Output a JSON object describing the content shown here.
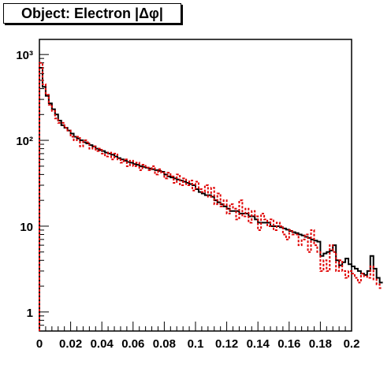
{
  "title": "Object: Electron |Δφ|",
  "chart_data": {
    "type": "line",
    "title": "Object: Electron |Δφ|",
    "xlabel": "",
    "ylabel": "",
    "xlim": [
      0,
      0.2
    ],
    "ylim": [
      0.6,
      1500
    ],
    "yscale": "log",
    "grid": false,
    "x_ticks": [
      "0",
      "0.02",
      "0.04",
      "0.06",
      "0.08",
      "0.1",
      "0.12",
      "0.14",
      "0.16",
      "0.18",
      "0.2"
    ],
    "y_ticks": [
      "1",
      "10",
      "10²",
      "10³"
    ],
    "bin_width": 0.002,
    "series": [
      {
        "style": "solid",
        "color": "#000000",
        "values": [
          700,
          420,
          330,
          270,
          230,
          200,
          170,
          150,
          140,
          130,
          120,
          110,
          105,
          100,
          95,
          92,
          88,
          85,
          80,
          77,
          75,
          72,
          70,
          68,
          65,
          62,
          60,
          58,
          56,
          55,
          53,
          52,
          50,
          49,
          48,
          47,
          46,
          45,
          44,
          43,
          40,
          38,
          37,
          36,
          35,
          34,
          33,
          32,
          31,
          30,
          27,
          25,
          24,
          23,
          23,
          22,
          20,
          19,
          18,
          17,
          16,
          15,
          15,
          15,
          14,
          14,
          14,
          13,
          13,
          12,
          11,
          11,
          11,
          11,
          10,
          10,
          10,
          9.7,
          9.4,
          9.1,
          8.8,
          8.5,
          8.3,
          8.0,
          7.8,
          7.5,
          7.3,
          7.0,
          6.8,
          6.6,
          4.5,
          4.8,
          5.0,
          5.2,
          6.0,
          4.0,
          3.5,
          3.8,
          4.2,
          3.6,
          3.4,
          3.2,
          3.0,
          2.8,
          2.7,
          3.0,
          4.5,
          3.2,
          2.5,
          2.2
        ]
      },
      {
        "style": "dashed",
        "color": "#e00000",
        "values": [
          800,
          450,
          340,
          260,
          220,
          180,
          160,
          160,
          140,
          130,
          110,
          100,
          110,
          85,
          100,
          95,
          80,
          85,
          75,
          80,
          70,
          65,
          72,
          60,
          70,
          60,
          55,
          60,
          50,
          58,
          50,
          55,
          45,
          52,
          48,
          45,
          50,
          40,
          46,
          42,
          36,
          42,
          38,
          32,
          40,
          30,
          36,
          30,
          34,
          26,
          33,
          27,
          25,
          30,
          22,
          28,
          18,
          24,
          17,
          20,
          14,
          18,
          16,
          12,
          20,
          13,
          16,
          11,
          15,
          13,
          9,
          14,
          12,
          10,
          12,
          9,
          11,
          10,
          8,
          7,
          9,
          8,
          8,
          6,
          7,
          8,
          5,
          9,
          6,
          5,
          3,
          4,
          3,
          6,
          5,
          3,
          4,
          3,
          2.5,
          3,
          2.8,
          2.5,
          2.2,
          2.8,
          2.6,
          2.5,
          3.4,
          2.4,
          2.1,
          1.9
        ]
      }
    ]
  }
}
